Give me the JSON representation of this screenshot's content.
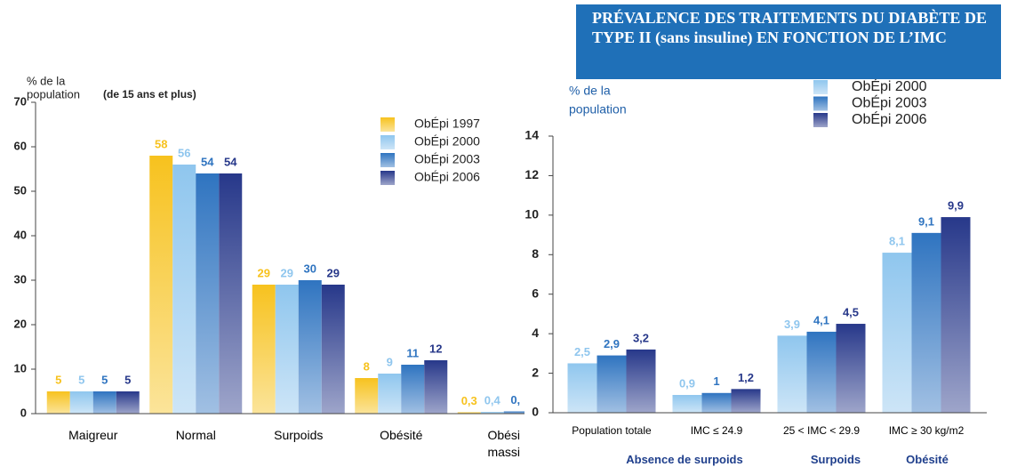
{
  "chart_data": [
    {
      "type": "bar",
      "y_label": [
        "% de la",
        "population"
      ],
      "y_label_note": "(de 15 ans et plus)",
      "categories": [
        "Maigreur",
        "Normal",
        "Surpoids",
        "Obésité",
        "Obési\nmassi"
      ],
      "ylim": [
        0,
        70
      ],
      "yticks": [
        0,
        10,
        20,
        30,
        40,
        50,
        60,
        70
      ],
      "series": [
        {
          "name": "ObÉpi 1997",
          "color": "#f7c21e",
          "values": [
            5,
            58,
            29,
            8,
            0.3
          ],
          "value_labels": [
            "5",
            "58",
            "29",
            "8",
            "0,3"
          ]
        },
        {
          "name": "ObÉpi 2000",
          "color": "#8fc6ee",
          "values": [
            5,
            56,
            29,
            9,
            0.4
          ],
          "value_labels": [
            "5",
            "56",
            "29",
            "9",
            "0,4"
          ]
        },
        {
          "name": "ObÉpi 2003",
          "color": "#2f74c0",
          "values": [
            5,
            54,
            30,
            11,
            0.5
          ],
          "value_labels": [
            "5",
            "54",
            "30",
            "11",
            "0,"
          ]
        },
        {
          "name": "ObÉpi 2006",
          "color": "#27388a",
          "values": [
            5,
            54,
            29,
            12,
            null
          ],
          "value_labels": [
            "5",
            "54",
            "29",
            "12",
            null
          ]
        }
      ]
    },
    {
      "type": "bar",
      "title": "PRÉVALENCE DES TRAITEMENTS DU DIABÈTE DE TYPE II (sans insuline) EN FONCTION DE L’IMC",
      "y_label": [
        "% de la",
        "population"
      ],
      "categories": [
        "Population totale",
        "IMC ≤ 24.9",
        "25 < IMC < 29.9",
        "IMC ≥ 30 kg/m2"
      ],
      "group_labels": [
        "Absence de surpoids",
        "Surpoids",
        "Obésité"
      ],
      "ylim": [
        0,
        14
      ],
      "yticks": [
        0,
        2,
        4,
        6,
        8,
        10,
        12,
        14
      ],
      "series": [
        {
          "name": "ObÉpi 2000",
          "color": "#8fc6ee",
          "values": [
            2.5,
            0.9,
            3.9,
            8.1
          ],
          "value_labels": [
            "2,5",
            "0,9",
            "3,9",
            "8,1"
          ]
        },
        {
          "name": "ObÉpi 2003",
          "color": "#2f74c0",
          "values": [
            2.9,
            1,
            4.1,
            9.1
          ],
          "value_labels": [
            "2,9",
            "1",
            "4,1",
            "9,1"
          ]
        },
        {
          "name": "ObÉpi 2006",
          "color": "#27388a",
          "values": [
            3.2,
            1.2,
            4.5,
            9.9
          ],
          "value_labels": [
            "3,2",
            "1,2",
            "4,5",
            "9,9"
          ]
        }
      ]
    }
  ]
}
